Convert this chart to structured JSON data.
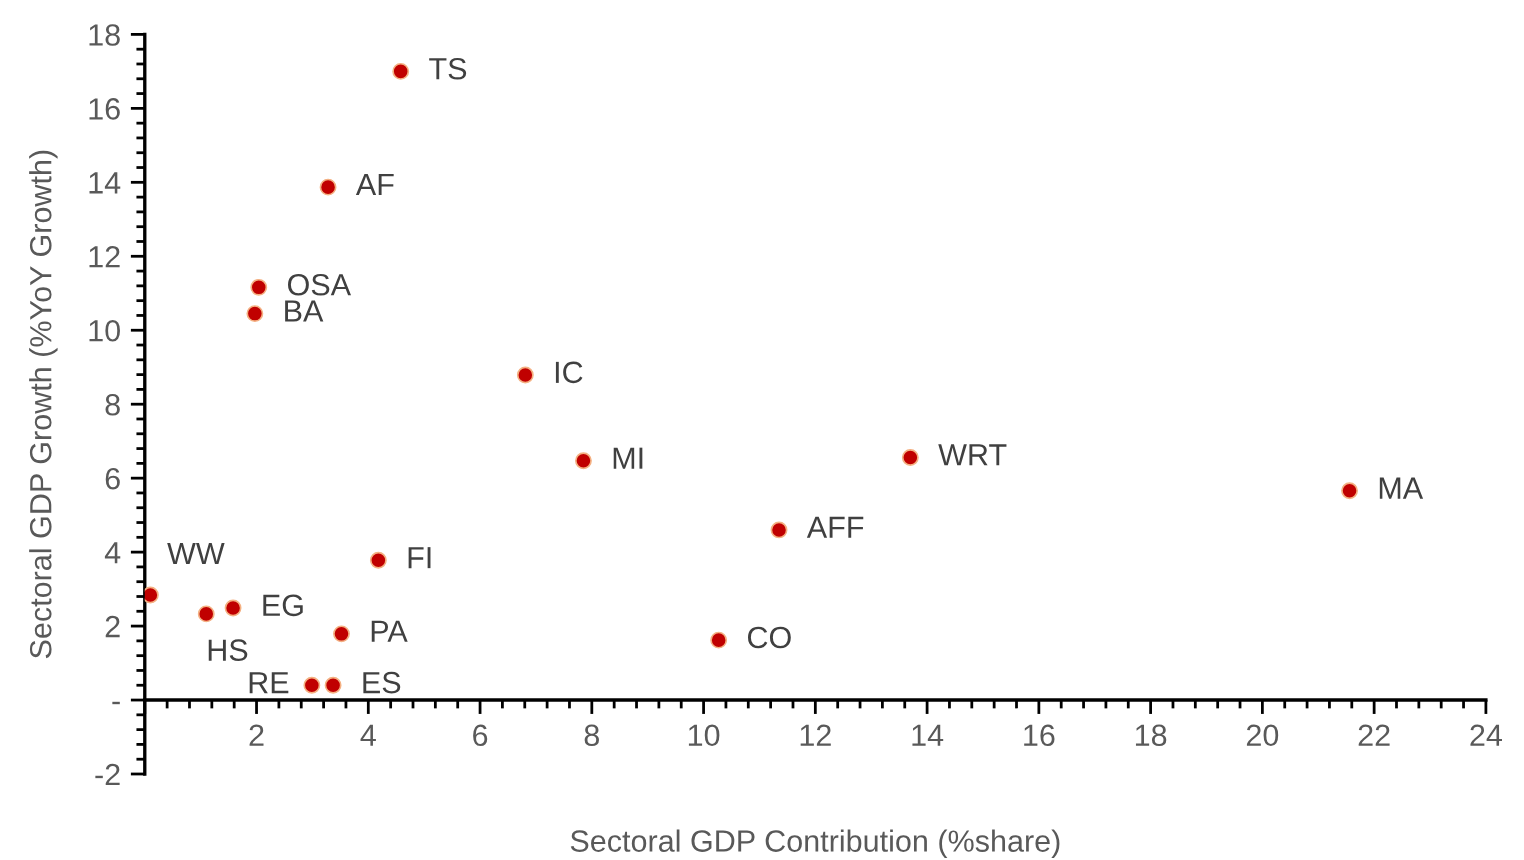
{
  "chart_data": {
    "type": "scatter",
    "xlabel": "Sectoral GDP Contribution (%share)",
    "ylabel": "Sectoral GDP Growth (%YoY Growth)",
    "series": [
      {
        "color": "#c00000",
        "x": [
          4.58,
          3.28,
          2.04,
          1.97,
          6.81,
          7.85,
          13.7,
          21.56,
          11.35,
          4.18,
          0.1,
          1.58,
          1.1,
          3.52,
          10.27,
          2.99,
          3.37
        ],
        "values": [
          17.0,
          13.87,
          11.16,
          10.45,
          8.79,
          6.47,
          6.56,
          5.66,
          4.6,
          3.78,
          2.84,
          2.49,
          2.33,
          1.79,
          1.62,
          0.4,
          0.4
        ]
      }
    ],
    "annotations": [
      {
        "text": "TS",
        "x": 4.58,
        "y": 17.0
      },
      {
        "text": "AF",
        "x": 3.28,
        "y": 13.87
      },
      {
        "text": "OSA",
        "x": 2.04,
        "y": 11.16
      },
      {
        "text": "BA",
        "x": 1.97,
        "y": 10.45
      },
      {
        "text": "IC",
        "x": 6.81,
        "y": 8.79
      },
      {
        "text": "MI",
        "x": 7.85,
        "y": 6.47
      },
      {
        "text": "WRT",
        "x": 13.7,
        "y": 6.56
      },
      {
        "text": "MA",
        "x": 21.56,
        "y": 5.66
      },
      {
        "text": "AFF",
        "x": 11.35,
        "y": 4.6
      },
      {
        "text": "FI",
        "x": 4.18,
        "y": 3.78
      },
      {
        "text": "WW",
        "x": 0.1,
        "y": 2.84
      },
      {
        "text": "EG",
        "x": 1.58,
        "y": 2.49
      },
      {
        "text": "HS",
        "x": 1.1,
        "y": 2.33
      },
      {
        "text": "PA",
        "x": 3.52,
        "y": 1.79
      },
      {
        "text": "CO",
        "x": 10.27,
        "y": 1.62
      },
      {
        "text": "RE",
        "x": 2.99,
        "y": 0.4
      },
      {
        "text": "ES",
        "x": 3.37,
        "y": 0.4
      }
    ],
    "xlim": [
      0,
      24
    ],
    "ylim": [
      -2,
      18
    ],
    "xticks": [
      {
        "value": 0,
        "label": null
      },
      2,
      4,
      6,
      8,
      10,
      12,
      14,
      16,
      18,
      20,
      22,
      24
    ],
    "yticks": [
      -2,
      {
        "value": 0,
        "label": "-"
      },
      2,
      4,
      6,
      8,
      10,
      12,
      14,
      16,
      18
    ],
    "marker": "circle",
    "grid": false,
    "legend": false
  }
}
